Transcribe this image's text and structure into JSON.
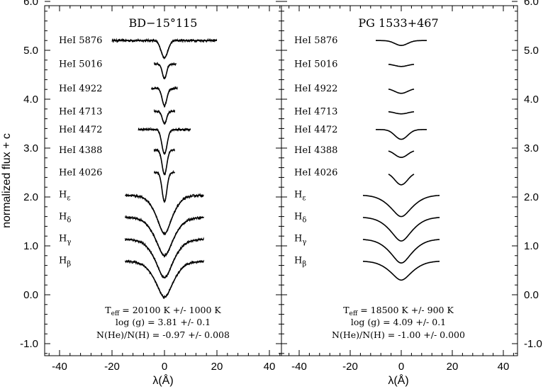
{
  "chart_data": {
    "type": "line",
    "ylabel": "normalized flux + c",
    "xlabel": "λ(Å)",
    "xlim": [
      -45,
      45
    ],
    "ylim": [
      -1.2,
      6.0
    ],
    "xticks": [
      "-40",
      "-20",
      "0",
      "20",
      "40"
    ],
    "yticks": [
      "6.0",
      "5.0",
      "4.0",
      "3.0",
      "2.0",
      "1.0",
      "0.0",
      "-1.0"
    ],
    "right_yticks": [
      "6.0",
      "5.0",
      "4.0",
      "3.0",
      "2.0",
      "1.0",
      "0.0",
      "-1.0"
    ],
    "panels": [
      {
        "title": "BD−15°115",
        "params": [
          "T_eff = 20100 K  +/-  1000 K",
          "log (g) = 3.81  +/-  0.1",
          "N(He)/N(H) = -0.97  +/-  0.008"
        ],
        "lines": [
          {
            "name": "HeI 5876",
            "offset": 5.2,
            "xmin": -20,
            "xmax": 20,
            "depth": 0.35,
            "width": 1.3
          },
          {
            "name": "HeI 5016",
            "offset": 4.72,
            "xmin": -4,
            "xmax": 4.5,
            "depth": 0.3,
            "width": 0.8
          },
          {
            "name": "HeI 4922",
            "offset": 4.22,
            "xmin": -5,
            "xmax": 5,
            "depth": 0.35,
            "width": 0.9
          },
          {
            "name": "HeI 4713",
            "offset": 3.75,
            "xmin": -4,
            "xmax": 4,
            "depth": 0.25,
            "width": 0.8
          },
          {
            "name": "HeI 4472",
            "offset": 3.38,
            "xmin": -10,
            "xmax": 10,
            "depth": 0.5,
            "width": 1.0
          },
          {
            "name": "HeI 4388",
            "offset": 2.96,
            "xmin": -4,
            "xmax": 4,
            "depth": 0.5,
            "width": 0.9
          },
          {
            "name": "HeI 4026",
            "offset": 2.5,
            "xmin": -4,
            "xmax": 4,
            "depth": 0.6,
            "width": 0.9
          },
          {
            "name": "Hε",
            "offset": 2.05,
            "xmin": -15,
            "xmax": 15,
            "depth": 0.8,
            "width": 3.5
          },
          {
            "name": "Hδ",
            "offset": 1.6,
            "xmin": -15,
            "xmax": 15,
            "depth": 0.8,
            "width": 4.0
          },
          {
            "name": "Hγ",
            "offset": 1.15,
            "xmin": -15,
            "xmax": 15,
            "depth": 0.8,
            "width": 4.0
          },
          {
            "name": "Hβ",
            "offset": 0.7,
            "xmin": -15,
            "xmax": 15,
            "depth": 0.75,
            "width": 4.0
          }
        ]
      },
      {
        "title": "PG 1533+467",
        "params": [
          "T_eff = 18500 K  +/-  900 K",
          "log (g) = 4.09  +/-  0.1",
          "N(He)/N(H) = -1.00  +/-  0.000"
        ],
        "lines": [
          {
            "name": "HeI 5876",
            "offset": 5.2,
            "xmin": -10,
            "xmax": 10,
            "depth": 0.1,
            "width": 2.5
          },
          {
            "name": "HeI 5016",
            "offset": 4.72,
            "xmin": -5,
            "xmax": 5,
            "depth": 0.05,
            "width": 2.5
          },
          {
            "name": "HeI 4922",
            "offset": 4.22,
            "xmin": -5,
            "xmax": 5,
            "depth": 0.1,
            "width": 2.5
          },
          {
            "name": "HeI 4713",
            "offset": 3.75,
            "xmin": -5,
            "xmax": 5,
            "depth": 0.05,
            "width": 2.5
          },
          {
            "name": "HeI 4472",
            "offset": 3.38,
            "xmin": -10,
            "xmax": 10,
            "depth": 0.2,
            "width": 2.5
          },
          {
            "name": "HeI 4388",
            "offset": 2.96,
            "xmin": -5,
            "xmax": 5,
            "depth": 0.15,
            "width": 2.5
          },
          {
            "name": "HeI 4026",
            "offset": 2.5,
            "xmin": -5,
            "xmax": 5,
            "depth": 0.25,
            "width": 2.5
          },
          {
            "name": "Hε",
            "offset": 2.05,
            "xmin": -15,
            "xmax": 15,
            "depth": 0.45,
            "width": 5.0
          },
          {
            "name": "Hδ",
            "offset": 1.6,
            "xmin": -15,
            "xmax": 15,
            "depth": 0.5,
            "width": 5.0
          },
          {
            "name": "Hγ",
            "offset": 1.15,
            "xmin": -15,
            "xmax": 15,
            "depth": 0.5,
            "width": 5.0
          },
          {
            "name": "Hβ",
            "offset": 0.7,
            "xmin": -15,
            "xmax": 15,
            "depth": 0.4,
            "width": 5.0
          }
        ]
      }
    ]
  }
}
